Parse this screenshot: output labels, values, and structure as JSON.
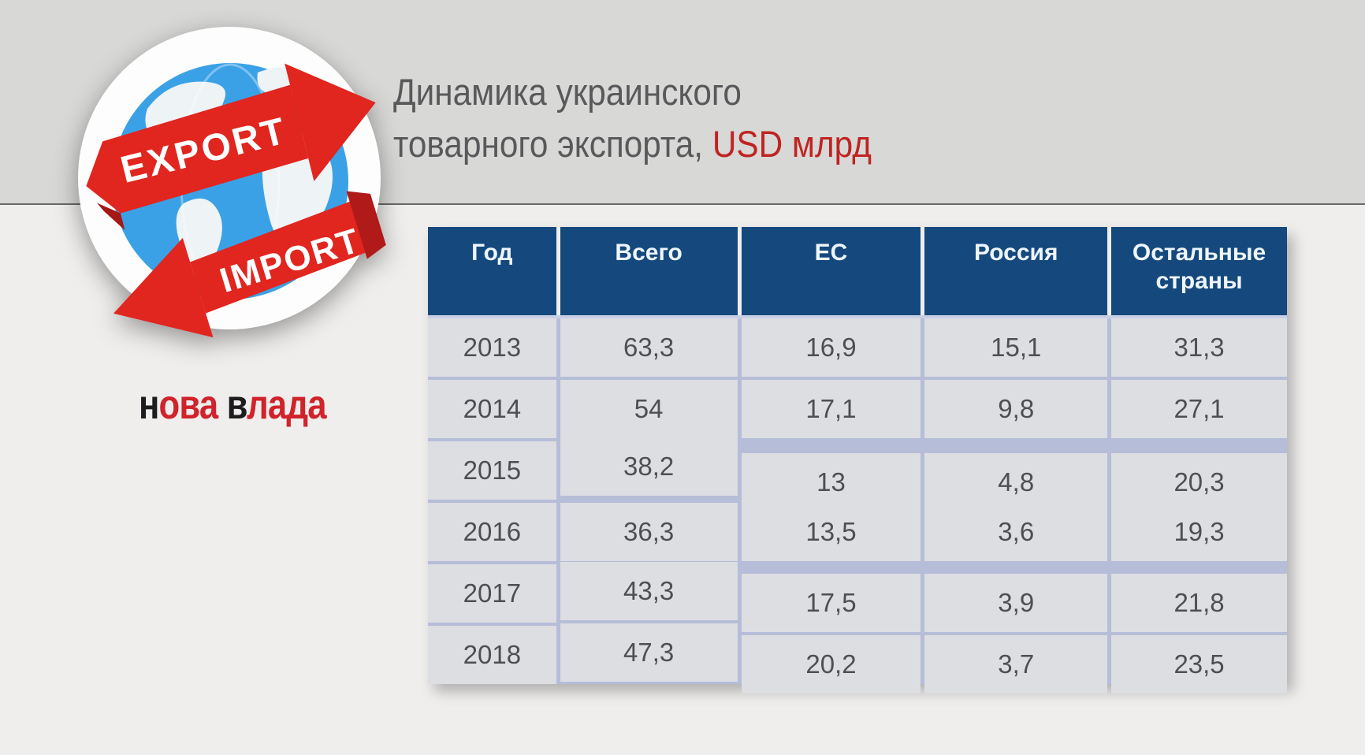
{
  "title": {
    "line1": "Динамика украинского",
    "line2_gray": "товарного экспорта,",
    "line2_red": "USD млрд"
  },
  "logo": {
    "export_label": "EXPORT",
    "import_label": "IMPORT"
  },
  "brand": {
    "word1_black": "н",
    "word1_red": "ова",
    "word2_black": "в",
    "word2_red": "лада"
  },
  "colors": {
    "accent_red": "#bf2421",
    "header_blue": "#15497d",
    "row_gray": "#dcdee2",
    "ribbon_red": "#e1251f",
    "globe_blue": "#3ba1e6"
  },
  "chart_data": {
    "type": "table",
    "title": "Динамика украинского товарного экспорта, USD млрд",
    "columns": [
      "Год",
      "Всего",
      "ЕС",
      "Россия",
      "Остальные страны"
    ],
    "rows": [
      [
        "2013",
        "63,3",
        "16,9",
        "15,1",
        "31,3"
      ],
      [
        "2014",
        "54",
        "17,1",
        "9,8",
        "27,1"
      ],
      [
        "2015",
        "38,2",
        "13",
        "4,8",
        "20,3"
      ],
      [
        "2016",
        "36,3",
        "13,5",
        "3,6",
        "19,3"
      ],
      [
        "2017",
        "43,3",
        "17,5",
        "3,9",
        "21,8"
      ],
      [
        "2018",
        "47,3",
        "20,2",
        "3,7",
        "23,5"
      ]
    ]
  }
}
